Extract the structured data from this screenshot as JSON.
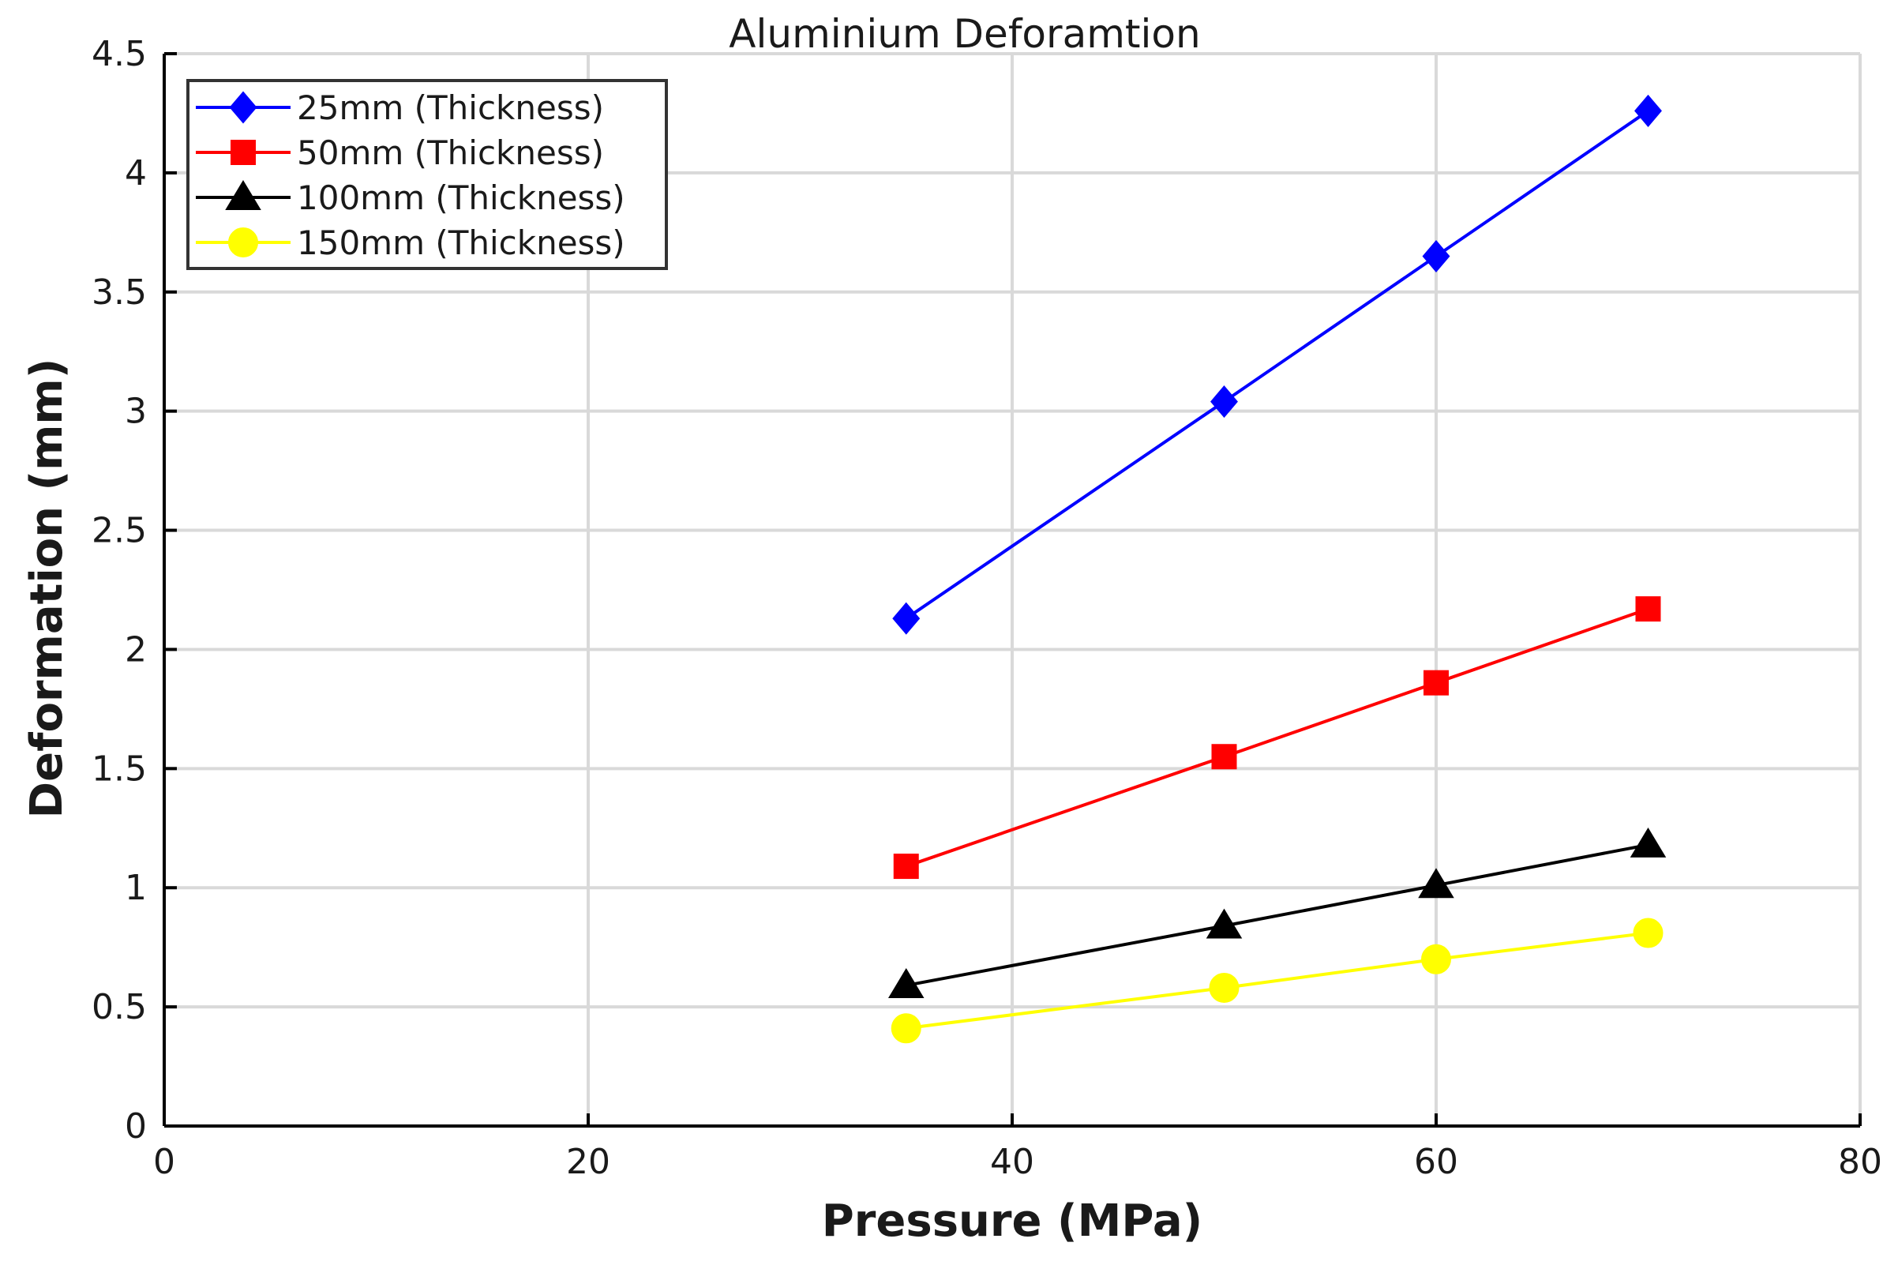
{
  "chart_data": {
    "type": "line",
    "title": "Aluminium Deforamtion",
    "xlabel": "Pressure (MPa)",
    "ylabel": "Deformation (mm)",
    "xlim": [
      0,
      80
    ],
    "ylim": [
      0,
      4.5
    ],
    "xticks": [
      0,
      20,
      40,
      60,
      80
    ],
    "xtick_labels": [
      "0",
      "20",
      "40",
      "60",
      "80"
    ],
    "yticks": [
      0,
      0.5,
      1,
      1.5,
      2,
      2.5,
      3,
      3.5,
      4,
      4.5
    ],
    "ytick_labels": [
      "0",
      "0.5",
      "1",
      "1.5",
      "2",
      "2.5",
      "3",
      "3.5",
      "4",
      "4.5"
    ],
    "grid": true,
    "legend_position": "top-left",
    "x": [
      35,
      50,
      60,
      70
    ],
    "series": [
      {
        "name": "25mm (Thickness)",
        "marker": "diamond",
        "color": "#0000ff",
        "values": [
          2.13,
          3.04,
          3.65,
          4.26
        ]
      },
      {
        "name": "50mm (Thickness)",
        "marker": "square",
        "color": "#ff0000",
        "values": [
          1.09,
          1.55,
          1.86,
          2.17
        ]
      },
      {
        "name": "100mm (Thickness)",
        "marker": "triangle",
        "color": "#000000",
        "values": [
          0.59,
          0.84,
          1.01,
          1.18
        ]
      },
      {
        "name": "150mm (Thickness)",
        "marker": "circle",
        "color": "#ffff00",
        "values": [
          0.41,
          0.58,
          0.7,
          0.81
        ]
      }
    ]
  }
}
